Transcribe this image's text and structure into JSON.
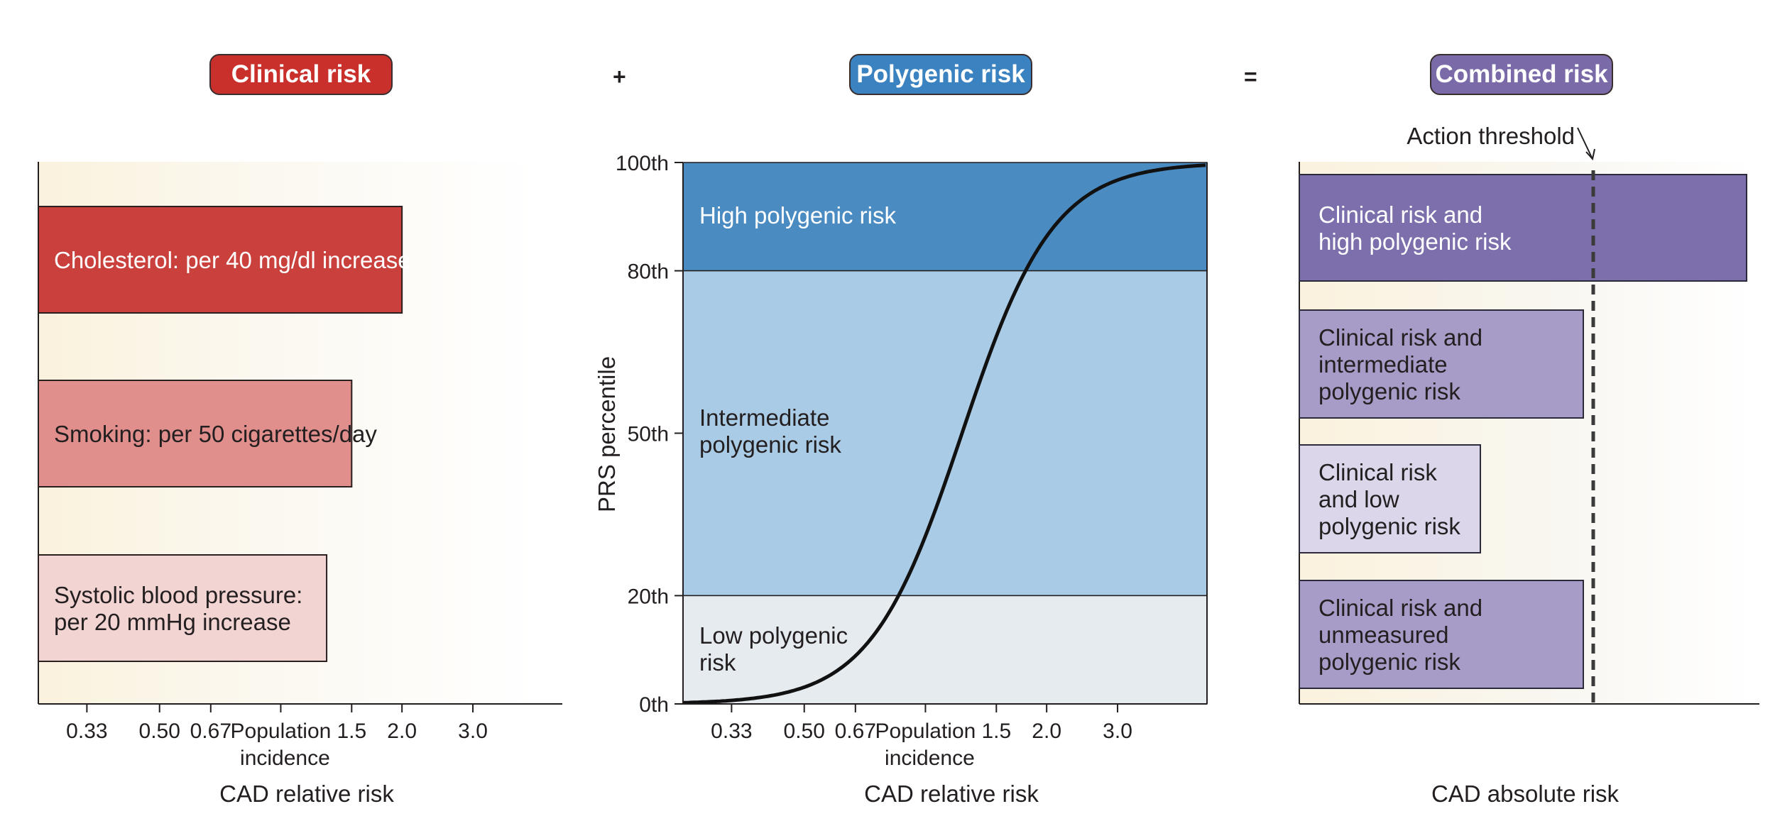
{
  "headers": {
    "clinical": "Clinical risk",
    "plus": "+",
    "polygenic": "Polygenic risk",
    "equals": "=",
    "combined": "Combined risk"
  },
  "colors": {
    "clinical": "#c9302c",
    "polygenic": "#3b82c0",
    "combined": "#7a6aa8"
  },
  "panel_clinical": {
    "bars": [
      {
        "label_lines": [
          "Cholesterol: per 40 mg/dl increase"
        ],
        "value": 2.0,
        "fill": "#c9403c"
      },
      {
        "label_lines": [
          "Smoking: per 50 cigarettes/day"
        ],
        "value": 1.5,
        "fill": "#e08f8c"
      },
      {
        "label_lines": [
          "Systolic blood pressure:",
          "per 20 mmHg increase"
        ],
        "value": 1.3,
        "fill": "#f2d4d2"
      }
    ],
    "ticks": [
      "0.33",
      "0.50",
      "0.67",
      "Population",
      "1.5",
      "2.0",
      "3.0"
    ],
    "tick_sub": "incidence",
    "xlabel": "CAD relative risk"
  },
  "panel_polygenic": {
    "ylabel": "PRS percentile",
    "yticks": [
      "100th",
      "80th",
      "50th",
      "20th",
      "0th"
    ],
    "bands": [
      {
        "label_lines": [
          "High polygenic risk"
        ],
        "from": 80,
        "to": 100,
        "fill": "#4a8bc2"
      },
      {
        "label_lines": [
          "Intermediate",
          "polygenic risk"
        ],
        "from": 20,
        "to": 80,
        "fill": "#a9cbe5"
      },
      {
        "label_lines": [
          "Low polygenic",
          "risk"
        ],
        "from": 0,
        "to": 20,
        "fill": "#e6ebef"
      }
    ],
    "ticks": [
      "0.33",
      "0.50",
      "0.67",
      "Population",
      "1.5",
      "2.0",
      "3.0"
    ],
    "tick_sub": "incidence",
    "xlabel": "CAD relative risk"
  },
  "panel_combined": {
    "threshold_label": "Action threshold",
    "bars": [
      {
        "label_lines": [
          "Clinical risk and",
          "high polygenic risk"
        ],
        "fill": "#7d6fab"
      },
      {
        "label_lines": [
          "Clinical risk and",
          "intermediate",
          "polygenic risk"
        ],
        "fill": "#a79cc8"
      },
      {
        "label_lines": [
          "Clinical risk",
          "and low",
          "polygenic risk"
        ],
        "fill": "#dcd6ea"
      },
      {
        "label_lines": [
          "Clinical risk and",
          "unmeasured",
          "polygenic risk"
        ],
        "fill": "#a79cc8"
      }
    ],
    "xlabel": "CAD absolute risk"
  }
}
